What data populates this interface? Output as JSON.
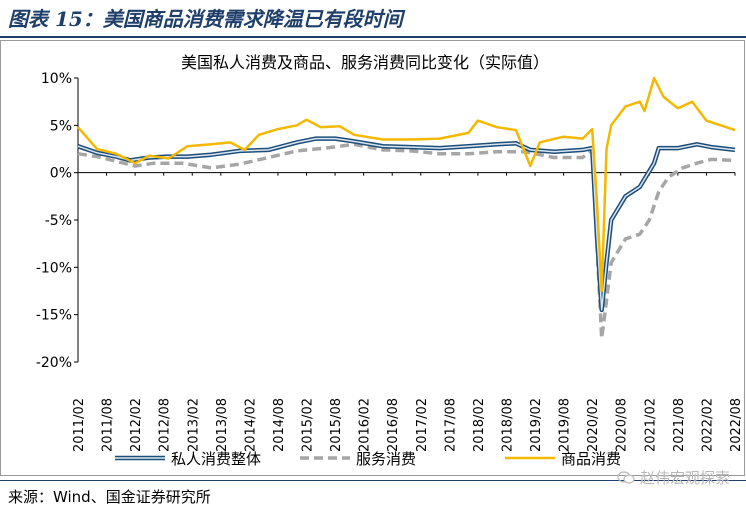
{
  "figure_title": "图表 15：美国商品消费需求降温已有段时间",
  "source_text": "来源：Wind、国金证券研究所",
  "watermark_text": "赵伟宏观探索",
  "watermark_icon": "wechat-icon",
  "colors": {
    "title": "#1f3f6b",
    "total": "#1f4e79",
    "services": "#a6a6a6",
    "goods": "#f5b800"
  },
  "chart_data": {
    "type": "line",
    "title": "美国私人消费及商品、服务消费同比变化（实际值）",
    "ylim": [
      -20,
      10
    ],
    "yticks": [
      -20,
      -15,
      -10,
      -5,
      0,
      5,
      10
    ],
    "ytick_labels": [
      "-20%",
      "-15%",
      "-10%",
      "-5%",
      "0%",
      "5%",
      "10%"
    ],
    "x_range": [
      "2011-02",
      "2022-08"
    ],
    "xtick_labels": [
      "2011/02",
      "2011/08",
      "2012/02",
      "2012/08",
      "2013/02",
      "2013/08",
      "2014/02",
      "2014/08",
      "2015/02",
      "2015/08",
      "2016/02",
      "2016/08",
      "2017/02",
      "2017/08",
      "2018/02",
      "2018/08",
      "2019/02",
      "2019/08",
      "2020/02",
      "2020/08",
      "2021/02",
      "2021/08",
      "2022/02",
      "2022/08"
    ],
    "legend_position": "bottom",
    "grid": false,
    "series": [
      {
        "name": "私人消费整体",
        "style": "solid",
        "color": "#1f4e79",
        "points": [
          [
            "2011-02",
            2.8
          ],
          [
            "2011-06",
            2.1
          ],
          [
            "2011-10",
            1.7
          ],
          [
            "2012-01",
            1.3
          ],
          [
            "2012-05",
            1.6
          ],
          [
            "2012-09",
            1.7
          ],
          [
            "2013-01",
            1.7
          ],
          [
            "2013-06",
            1.9
          ],
          [
            "2013-12",
            2.3
          ],
          [
            "2014-06",
            2.4
          ],
          [
            "2014-12",
            3.2
          ],
          [
            "2015-04",
            3.6
          ],
          [
            "2015-08",
            3.6
          ],
          [
            "2015-12",
            3.3
          ],
          [
            "2016-06",
            2.8
          ],
          [
            "2016-12",
            2.7
          ],
          [
            "2017-06",
            2.6
          ],
          [
            "2017-12",
            2.8
          ],
          [
            "2018-06",
            3.0
          ],
          [
            "2018-10",
            3.1
          ],
          [
            "2019-01",
            2.4
          ],
          [
            "2019-06",
            2.2
          ],
          [
            "2019-12",
            2.4
          ],
          [
            "2020-02",
            2.6
          ],
          [
            "2020-03",
            -6.5
          ],
          [
            "2020-04",
            -14.5
          ],
          [
            "2020-05",
            -9.5
          ],
          [
            "2020-06",
            -5.0
          ],
          [
            "2020-09",
            -2.5
          ],
          [
            "2020-12",
            -1.5
          ],
          [
            "2021-03",
            1.0
          ],
          [
            "2021-04",
            2.6
          ],
          [
            "2021-08",
            2.6
          ],
          [
            "2021-12",
            3.0
          ],
          [
            "2022-03",
            2.7
          ],
          [
            "2022-08",
            2.4
          ]
        ]
      },
      {
        "name": "服务消费",
        "style": "dashed",
        "color": "#a6a6a6",
        "points": [
          [
            "2011-02",
            2.0
          ],
          [
            "2011-06",
            1.7
          ],
          [
            "2011-10",
            1.2
          ],
          [
            "2012-02",
            0.7
          ],
          [
            "2012-06",
            1.0
          ],
          [
            "2012-12",
            1.0
          ],
          [
            "2013-06",
            0.5
          ],
          [
            "2013-12",
            0.9
          ],
          [
            "2014-06",
            1.6
          ],
          [
            "2014-12",
            2.3
          ],
          [
            "2015-06",
            2.6
          ],
          [
            "2015-12",
            3.0
          ],
          [
            "2016-06",
            2.4
          ],
          [
            "2016-12",
            2.3
          ],
          [
            "2017-06",
            2.0
          ],
          [
            "2017-12",
            2.0
          ],
          [
            "2018-06",
            2.2
          ],
          [
            "2018-12",
            2.2
          ],
          [
            "2019-06",
            1.6
          ],
          [
            "2019-12",
            1.6
          ],
          [
            "2020-02",
            2.4
          ],
          [
            "2020-03",
            -7.5
          ],
          [
            "2020-04",
            -17.5
          ],
          [
            "2020-05",
            -13.5
          ],
          [
            "2020-06",
            -9.5
          ],
          [
            "2020-09",
            -7.0
          ],
          [
            "2020-12",
            -6.5
          ],
          [
            "2021-02",
            -5.0
          ],
          [
            "2021-04",
            -2.0
          ],
          [
            "2021-06",
            -0.5
          ],
          [
            "2021-09",
            0.5
          ],
          [
            "2021-12",
            1.0
          ],
          [
            "2022-03",
            1.4
          ],
          [
            "2022-08",
            1.3
          ]
        ]
      },
      {
        "name": "商品消费",
        "style": "solid",
        "color": "#f5b800",
        "points": [
          [
            "2011-02",
            4.8
          ],
          [
            "2011-06",
            2.5
          ],
          [
            "2011-10",
            2.0
          ],
          [
            "2012-02",
            1.0
          ],
          [
            "2012-05",
            1.8
          ],
          [
            "2012-09",
            1.5
          ],
          [
            "2013-01",
            2.8
          ],
          [
            "2013-06",
            3.0
          ],
          [
            "2013-10",
            3.2
          ],
          [
            "2014-01",
            2.4
          ],
          [
            "2014-04",
            4.0
          ],
          [
            "2014-08",
            4.6
          ],
          [
            "2014-12",
            5.0
          ],
          [
            "2015-02",
            5.6
          ],
          [
            "2015-05",
            4.8
          ],
          [
            "2015-09",
            4.9
          ],
          [
            "2015-12",
            4.0
          ],
          [
            "2016-06",
            3.5
          ],
          [
            "2016-12",
            3.5
          ],
          [
            "2017-06",
            3.6
          ],
          [
            "2017-12",
            4.2
          ],
          [
            "2018-02",
            5.5
          ],
          [
            "2018-06",
            4.8
          ],
          [
            "2018-10",
            4.5
          ],
          [
            "2019-01",
            0.7
          ],
          [
            "2019-03",
            3.2
          ],
          [
            "2019-08",
            3.8
          ],
          [
            "2019-12",
            3.6
          ],
          [
            "2020-02",
            4.6
          ],
          [
            "2020-03",
            -3.0
          ],
          [
            "2020-04",
            -12.5
          ],
          [
            "2020-05",
            2.5
          ],
          [
            "2020-06",
            5.0
          ],
          [
            "2020-09",
            7.0
          ],
          [
            "2020-12",
            7.5
          ],
          [
            "2021-01",
            6.5
          ],
          [
            "2021-03",
            10.0
          ],
          [
            "2021-05",
            8.0
          ],
          [
            "2021-08",
            6.8
          ],
          [
            "2021-11",
            7.5
          ],
          [
            "2022-02",
            5.5
          ],
          [
            "2022-05",
            5.0
          ],
          [
            "2022-08",
            4.5
          ]
        ]
      }
    ]
  }
}
